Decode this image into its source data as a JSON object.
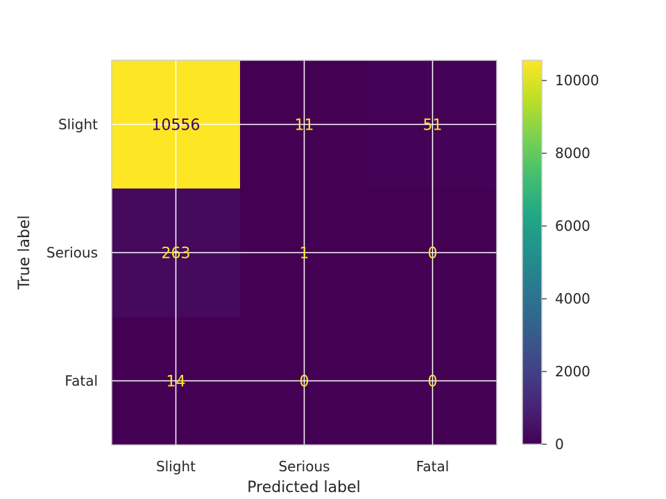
{
  "chart_data": {
    "type": "heatmap",
    "title": "",
    "xlabel": "Predicted label",
    "ylabel": "True label",
    "x_categories": [
      "Slight",
      "Serious",
      "Fatal"
    ],
    "y_categories": [
      "Slight",
      "Serious",
      "Fatal"
    ],
    "matrix": [
      [
        10556,
        11,
        51
      ],
      [
        263,
        1,
        0
      ],
      [
        14,
        0,
        0
      ]
    ],
    "cell_labels": [
      [
        "10556",
        "11",
        "51"
      ],
      [
        "263",
        "1",
        "0"
      ],
      [
        "14",
        "0",
        "0"
      ]
    ],
    "colormap": "viridis",
    "colorbar": {
      "ticks": [
        0,
        2000,
        4000,
        6000,
        8000,
        10000
      ],
      "tick_labels": [
        "0",
        "2000",
        "4000",
        "6000",
        "8000",
        "10000"
      ],
      "range": [
        0,
        10556
      ]
    },
    "grid": true,
    "colors": {
      "text_on_dark": "#fde725",
      "text_on_light": "#440154",
      "grid": "#ffffff",
      "spine": "#cccccc"
    }
  }
}
